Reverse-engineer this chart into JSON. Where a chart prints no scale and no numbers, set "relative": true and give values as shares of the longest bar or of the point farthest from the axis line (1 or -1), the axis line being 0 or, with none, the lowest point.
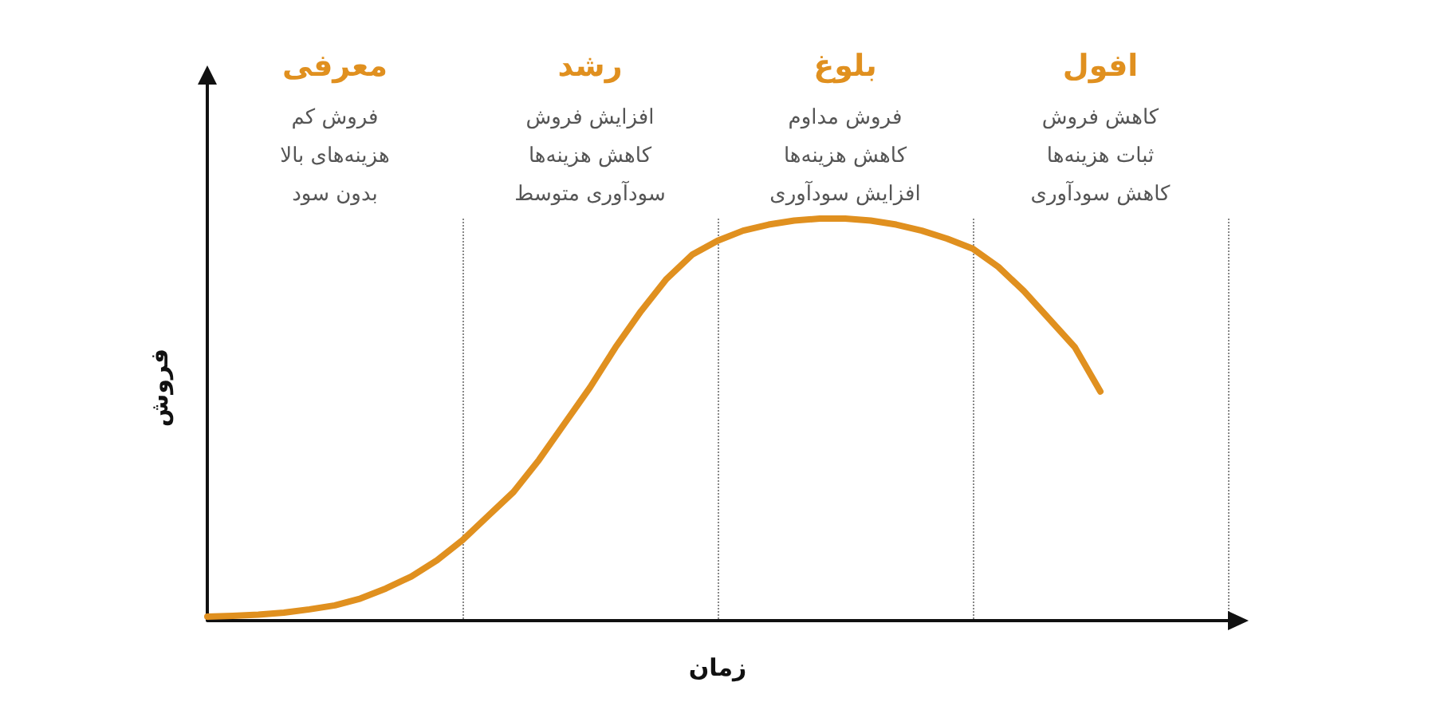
{
  "chart_data": {
    "type": "line",
    "relative": true,
    "xlabel": "زمان",
    "ylabel": "فروش",
    "categories": [
      null,
      null,
      null,
      null,
      null,
      null,
      null,
      null,
      null,
      null,
      null,
      null,
      null,
      null,
      null,
      null,
      null,
      null,
      null,
      null,
      null,
      null,
      null,
      null,
      null,
      null,
      null,
      null,
      null,
      null,
      null,
      null,
      null,
      null,
      null,
      null,
      null,
      null,
      null,
      null,
      null
    ],
    "series": [
      {
        "color": "#e0901f",
        "values": [
          0.01,
          0.012,
          0.015,
          0.02,
          0.028,
          0.038,
          0.055,
          0.08,
          0.11,
          0.15,
          0.2,
          0.26,
          0.32,
          0.4,
          0.49,
          0.58,
          0.68,
          0.77,
          0.85,
          0.91,
          0.945,
          0.97,
          0.985,
          0.995,
          1,
          1,
          0.995,
          0.985,
          0.97,
          0.95,
          0.925,
          0.88,
          0.82,
          0.75,
          0.68,
          0.57,
          null,
          null,
          null,
          null,
          null
        ]
      }
    ],
    "grid": "x",
    "marker": "none",
    "line_style": "solid",
    "annotations": [
      "معرفی",
      "فروش کم\nهزینه‌های بالا\nبدون سود",
      "رشد",
      "افزایش فروش\nکاهش هزینه‌ها\nسودآوری متوسط",
      "بلوغ",
      "فروش مداوم\nکاهش هزینه‌ها\nافزایش سودآوری",
      "افول",
      "کاهش فروش\nثبات هزینه‌ها\nکاهش سودآوری"
    ]
  }
}
